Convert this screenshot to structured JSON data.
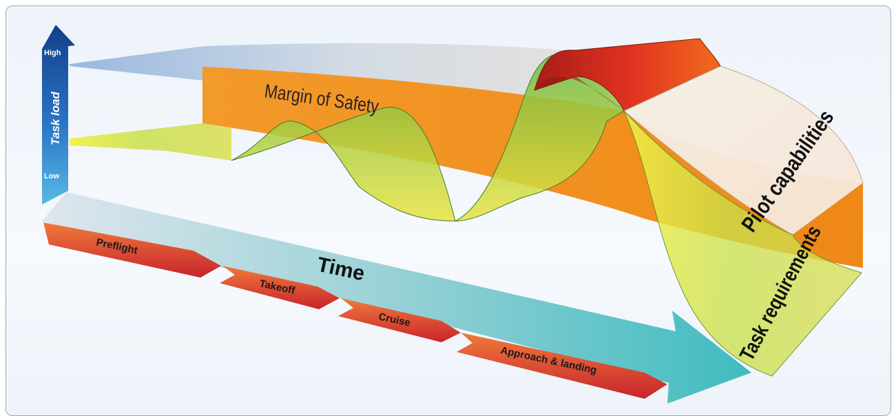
{
  "axis": {
    "high_label": "High",
    "low_label": "Low",
    "y_title": "Task load",
    "x_title": "Time"
  },
  "bands": {
    "margin_label": "Margin of Safety",
    "pilot_label": "Pilot capabilities",
    "task_label": "Task requirements"
  },
  "phases": [
    "Preflight",
    "Takeoff",
    "Cruise",
    "Approach & landing"
  ],
  "colors": {
    "axis_blue": "#1f5fae",
    "time_teal": "#4bbfc0",
    "margin_orange": "#f08c1e",
    "task_yellow": "#e6e23a",
    "task_green": "#7cc24a",
    "peak_red": "#d8251d",
    "phase_red": "#c8242c"
  }
}
